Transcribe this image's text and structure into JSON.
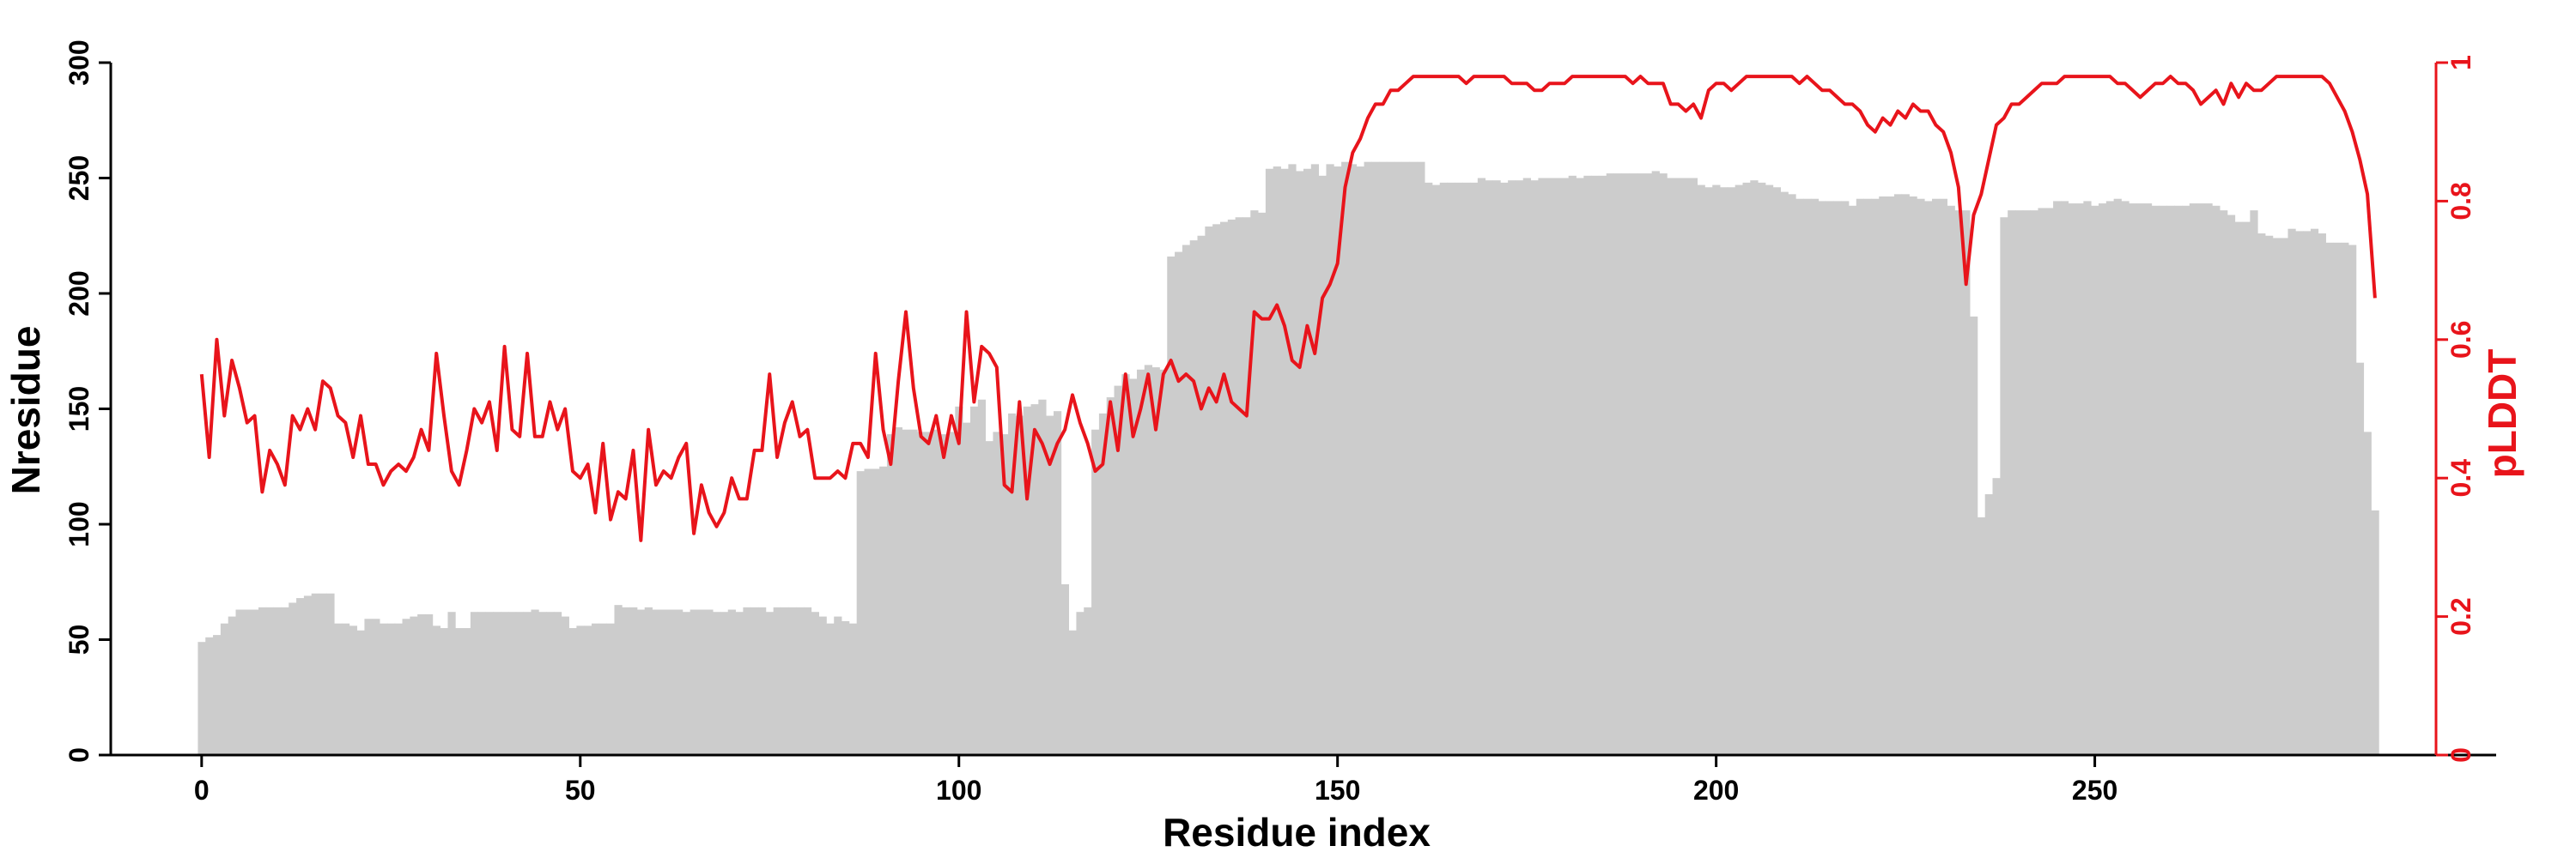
{
  "chart_data": {
    "type": "bar",
    "xlabel": "Residue index",
    "ylabel": "Nresidue",
    "y2label": "pLDDT",
    "xlim": [
      -12,
      303
    ],
    "ylim": [
      0,
      300
    ],
    "y2lim": [
      0,
      1
    ],
    "xticks": [
      0,
      50,
      100,
      150,
      200,
      250
    ],
    "yticks": [
      0,
      50,
      100,
      150,
      200,
      250,
      300
    ],
    "y2ticks": [
      0,
      0.2,
      0.4,
      0.6,
      0.8,
      1
    ],
    "xtick_labels": [
      "0",
      "50",
      "100",
      "150",
      "200",
      "250"
    ],
    "ytick_labels": [
      "0",
      "50",
      "100",
      "150",
      "200",
      "250",
      "300"
    ],
    "y2tick_labels": [
      "0",
      "0.2",
      "0.4",
      "0.6",
      "0.8",
      "1"
    ],
    "colors": {
      "bars": "#cccccc",
      "plddt": "#e8141b",
      "axis": "#000000",
      "right_axis": "#e8141b"
    },
    "grid": false,
    "legend": "none",
    "series": [
      {
        "name": "Nresidue",
        "kind": "bar",
        "x_start": 0,
        "values": [
          49,
          51,
          52,
          57,
          60,
          63,
          63,
          63,
          64,
          64,
          64,
          64,
          66,
          68,
          69,
          70,
          70,
          70,
          57,
          57,
          56,
          54,
          59,
          59,
          57,
          57,
          57,
          59,
          60,
          61,
          61,
          56,
          55,
          62,
          55,
          55,
          62,
          62,
          62,
          62,
          62,
          62,
          62,
          62,
          63,
          62,
          62,
          62,
          60,
          55,
          56,
          56,
          57,
          57,
          57,
          65,
          64,
          64,
          63,
          64,
          63,
          63,
          63,
          63,
          62,
          63,
          63,
          63,
          62,
          62,
          63,
          62,
          64,
          64,
          64,
          62,
          64,
          64,
          64,
          64,
          64,
          62,
          60,
          57,
          60,
          58,
          57,
          123,
          124,
          124,
          125,
          139,
          142,
          141,
          141,
          140,
          140,
          141,
          139,
          140,
          151,
          144,
          151,
          154,
          136,
          140,
          139,
          148,
          147,
          151,
          152,
          154,
          147,
          149,
          74,
          54,
          62,
          64,
          141,
          148,
          155,
          160,
          165,
          163,
          167,
          169,
          168,
          167,
          216,
          218,
          221,
          223,
          225,
          229,
          230,
          231,
          232,
          233,
          233,
          236,
          235,
          254,
          255,
          254,
          256,
          253,
          254,
          256,
          251,
          256,
          255,
          257,
          256,
          255,
          257,
          257,
          257,
          257,
          257,
          257,
          257,
          257,
          248,
          247,
          248,
          248,
          248,
          248,
          248,
          250,
          249,
          249,
          248,
          249,
          249,
          250,
          249,
          250,
          250,
          250,
          250,
          251,
          250,
          251,
          251,
          251,
          252,
          252,
          252,
          252,
          252,
          252,
          253,
          252,
          250,
          250,
          250,
          250,
          247,
          246,
          247,
          246,
          246,
          247,
          248,
          249,
          248,
          247,
          246,
          244,
          243,
          241,
          241,
          241,
          240,
          240,
          240,
          240,
          238,
          241,
          241,
          241,
          242,
          242,
          243,
          243,
          242,
          241,
          240,
          241,
          241,
          238,
          236,
          236,
          190,
          103,
          113,
          120,
          233,
          236,
          236,
          236,
          236,
          237,
          237,
          240,
          240,
          239,
          239,
          240,
          238,
          239,
          240,
          241,
          240,
          239,
          239,
          239,
          238,
          238,
          238,
          238,
          238,
          239,
          239,
          239,
          238,
          236,
          234,
          231,
          231,
          236,
          226,
          225,
          224,
          224,
          228,
          227,
          227,
          228,
          226,
          222,
          222,
          222,
          221,
          170,
          140,
          106
        ]
      },
      {
        "name": "pLDDT",
        "kind": "line",
        "x_start": 0,
        "values": [
          0.55,
          0.43,
          0.6,
          0.49,
          0.57,
          0.53,
          0.48,
          0.49,
          0.38,
          0.44,
          0.42,
          0.39,
          0.49,
          0.47,
          0.5,
          0.47,
          0.54,
          0.53,
          0.49,
          0.48,
          0.43,
          0.49,
          0.42,
          0.42,
          0.39,
          0.41,
          0.42,
          0.41,
          0.43,
          0.47,
          0.44,
          0.58,
          0.49,
          0.41,
          0.39,
          0.44,
          0.5,
          0.48,
          0.51,
          0.44,
          0.59,
          0.47,
          0.46,
          0.58,
          0.46,
          0.46,
          0.51,
          0.47,
          0.5,
          0.41,
          0.4,
          0.42,
          0.35,
          0.45,
          0.34,
          0.38,
          0.37,
          0.44,
          0.31,
          0.47,
          0.39,
          0.41,
          0.4,
          0.43,
          0.45,
          0.32,
          0.39,
          0.35,
          0.33,
          0.35,
          0.4,
          0.37,
          0.37,
          0.44,
          0.44,
          0.55,
          0.43,
          0.48,
          0.51,
          0.46,
          0.47,
          0.4,
          0.4,
          0.4,
          0.41,
          0.4,
          0.45,
          0.45,
          0.43,
          0.58,
          0.47,
          0.42,
          0.54,
          0.64,
          0.53,
          0.46,
          0.45,
          0.49,
          0.43,
          0.49,
          0.45,
          0.64,
          0.51,
          0.59,
          0.58,
          0.56,
          0.39,
          0.38,
          0.51,
          0.37,
          0.47,
          0.45,
          0.42,
          0.45,
          0.47,
          0.52,
          0.48,
          0.45,
          0.41,
          0.42,
          0.51,
          0.44,
          0.55,
          0.46,
          0.5,
          0.55,
          0.47,
          0.55,
          0.57,
          0.54,
          0.55,
          0.54,
          0.5,
          0.53,
          0.51,
          0.55,
          0.51,
          0.5,
          0.49,
          0.64,
          0.63,
          0.63,
          0.65,
          0.62,
          0.57,
          0.56,
          0.62,
          0.58,
          0.66,
          0.68,
          0.71,
          0.82,
          0.87,
          0.89,
          0.92,
          0.94,
          0.94,
          0.96,
          0.96,
          0.97,
          0.98,
          0.98,
          0.98,
          0.98,
          0.98,
          0.98,
          0.98,
          0.97,
          0.98,
          0.98,
          0.98,
          0.98,
          0.98,
          0.97,
          0.97,
          0.97,
          0.96,
          0.96,
          0.97,
          0.97,
          0.97,
          0.98,
          0.98,
          0.98,
          0.98,
          0.98,
          0.98,
          0.98,
          0.98,
          0.97,
          0.98,
          0.97,
          0.97,
          0.97,
          0.94,
          0.94,
          0.93,
          0.94,
          0.92,
          0.96,
          0.97,
          0.97,
          0.96,
          0.97,
          0.98,
          0.98,
          0.98,
          0.98,
          0.98,
          0.98,
          0.98,
          0.97,
          0.98,
          0.97,
          0.96,
          0.96,
          0.95,
          0.94,
          0.94,
          0.93,
          0.91,
          0.9,
          0.92,
          0.91,
          0.93,
          0.92,
          0.94,
          0.93,
          0.93,
          0.91,
          0.9,
          0.87,
          0.82,
          0.68,
          0.78,
          0.81,
          0.86,
          0.91,
          0.92,
          0.94,
          0.94,
          0.95,
          0.96,
          0.97,
          0.97,
          0.97,
          0.98,
          0.98,
          0.98,
          0.98,
          0.98,
          0.98,
          0.98,
          0.97,
          0.97,
          0.96,
          0.95,
          0.96,
          0.97,
          0.97,
          0.98,
          0.97,
          0.97,
          0.96,
          0.94,
          0.95,
          0.96,
          0.94,
          0.97,
          0.95,
          0.97,
          0.96,
          0.96,
          0.97,
          0.98,
          0.98,
          0.98,
          0.98,
          0.98,
          0.98,
          0.98,
          0.97,
          0.95,
          0.93,
          0.9,
          0.86,
          0.81,
          0.66
        ]
      }
    ]
  }
}
